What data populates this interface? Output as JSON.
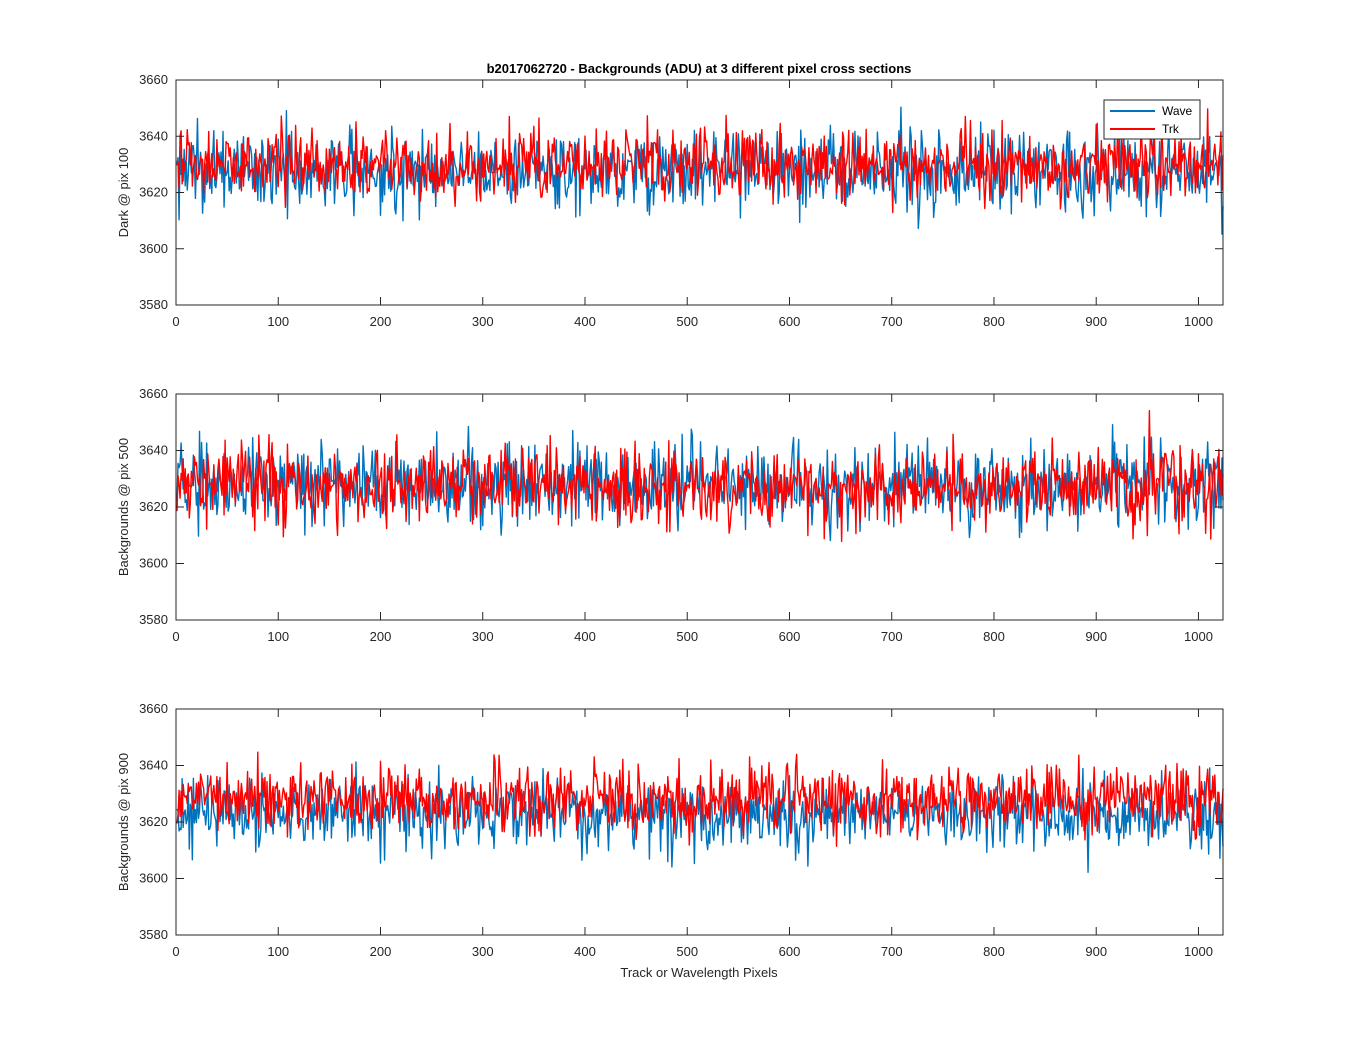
{
  "figure": {
    "title": "b2017062720 - Backgrounds (ADU) at 3 different pixel cross sections",
    "xlabel": "Track or Wavelength Pixels"
  },
  "legend": {
    "placement": "top-right",
    "entries": [
      "Wave",
      "Trk"
    ]
  },
  "colors": {
    "Wave": "#0072BD",
    "Trk": "#FF0000"
  },
  "chart_data": [
    {
      "type": "line",
      "ylabel": "Dark @ pix 100",
      "xlim": [
        0,
        1024
      ],
      "ylim": [
        3580,
        3660
      ],
      "xticks": [
        0,
        100,
        200,
        300,
        400,
        500,
        600,
        700,
        800,
        900,
        1000
      ],
      "yticks": [
        3580,
        3600,
        3620,
        3640,
        3660
      ],
      "series": [
        {
          "name": "Wave",
          "mean": 3628,
          "noise_sd": 7,
          "range": [
            3599,
            3657
          ],
          "n_points": 1024
        },
        {
          "name": "Trk",
          "mean": 3630,
          "noise_sd": 6,
          "range": [
            3602,
            3650
          ],
          "n_points": 1024
        }
      ]
    },
    {
      "type": "line",
      "ylabel": "Backgrounds @ pix 500",
      "xlim": [
        0,
        1024
      ],
      "ylim": [
        3580,
        3660
      ],
      "xticks": [
        0,
        100,
        200,
        300,
        400,
        500,
        600,
        700,
        800,
        900,
        1000
      ],
      "yticks": [
        3580,
        3600,
        3620,
        3640,
        3660
      ],
      "series": [
        {
          "name": "Wave",
          "mean": 3628,
          "noise_sd": 7,
          "range": [
            3597,
            3658
          ],
          "n_points": 1024
        },
        {
          "name": "Trk",
          "mean": 3628,
          "noise_sd": 7,
          "range": [
            3603,
            3658
          ],
          "n_points": 1024
        }
      ]
    },
    {
      "type": "line",
      "ylabel": "Backgrounds @ pix 900",
      "xlim": [
        0,
        1024
      ],
      "ylim": [
        3580,
        3660
      ],
      "xticks": [
        0,
        100,
        200,
        300,
        400,
        500,
        600,
        700,
        800,
        900,
        1000
      ],
      "yticks": [
        3580,
        3600,
        3620,
        3640,
        3660
      ],
      "series": [
        {
          "name": "Wave",
          "mean": 3623,
          "noise_sd": 6,
          "range": [
            3596,
            3645
          ],
          "n_points": 1024
        },
        {
          "name": "Trk",
          "mean": 3628,
          "noise_sd": 6,
          "range": [
            3603,
            3655
          ],
          "n_points": 1024
        }
      ]
    }
  ]
}
